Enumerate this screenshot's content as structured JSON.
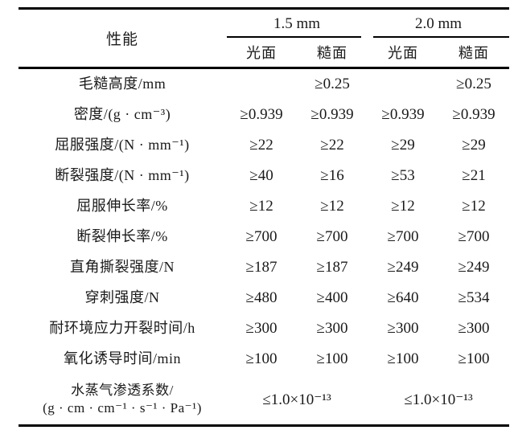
{
  "table": {
    "header": {
      "property_label": "性能",
      "groups": [
        {
          "label": "1.5 mm",
          "subcolumns": [
            "光面",
            "糙面"
          ]
        },
        {
          "label": "2.0 mm",
          "subcolumns": [
            "光面",
            "糙面"
          ]
        }
      ]
    },
    "rows": [
      {
        "label": "毛糙高度/mm",
        "cells": [
          {
            "text": ""
          },
          {
            "text": "≥0.25"
          },
          {
            "text": ""
          },
          {
            "text": "≥0.25"
          }
        ]
      },
      {
        "label": "密度/(g · cm⁻³)",
        "cells": [
          {
            "text": "≥0.939"
          },
          {
            "text": "≥0.939"
          },
          {
            "text": "≥0.939"
          },
          {
            "text": "≥0.939"
          }
        ]
      },
      {
        "label": "屈服强度/(N · mm⁻¹)",
        "cells": [
          {
            "text": "≥22"
          },
          {
            "text": "≥22"
          },
          {
            "text": "≥29"
          },
          {
            "text": "≥29"
          }
        ]
      },
      {
        "label": "断裂强度/(N · mm⁻¹)",
        "cells": [
          {
            "text": "≥40"
          },
          {
            "text": "≥16"
          },
          {
            "text": "≥53"
          },
          {
            "text": "≥21"
          }
        ]
      },
      {
        "label": "屈服伸长率/%",
        "cells": [
          {
            "text": "≥12"
          },
          {
            "text": "≥12"
          },
          {
            "text": "≥12"
          },
          {
            "text": "≥12"
          }
        ]
      },
      {
        "label": "断裂伸长率/%",
        "cells": [
          {
            "text": "≥700"
          },
          {
            "text": "≥700"
          },
          {
            "text": "≥700"
          },
          {
            "text": "≥700"
          }
        ]
      },
      {
        "label": "直角撕裂强度/N",
        "cells": [
          {
            "text": "≥187"
          },
          {
            "text": "≥187"
          },
          {
            "text": "≥249"
          },
          {
            "text": "≥249"
          }
        ]
      },
      {
        "label": "穿刺强度/N",
        "cells": [
          {
            "text": "≥480"
          },
          {
            "text": "≥400"
          },
          {
            "text": "≥640"
          },
          {
            "text": "≥534"
          }
        ]
      },
      {
        "label": "耐环境应力开裂时间/h",
        "cells": [
          {
            "text": "≥300"
          },
          {
            "text": "≥300"
          },
          {
            "text": "≥300"
          },
          {
            "text": "≥300"
          }
        ]
      },
      {
        "label": "氧化诱导时间/min",
        "cells": [
          {
            "text": "≥100"
          },
          {
            "text": "≥100"
          },
          {
            "text": "≥100"
          },
          {
            "text": "≥100"
          }
        ]
      },
      {
        "label": "水蒸气渗透系数/\n(g · cm · cm⁻¹ · s⁻¹ · Pa⁻¹)",
        "tall": true,
        "cells": [
          {
            "text": "≤1.0×10⁻¹³",
            "span": 2
          },
          {
            "text": "≤1.0×10⁻¹³",
            "span": 2
          }
        ]
      }
    ],
    "colors": {
      "text": "#1a1a1a",
      "rule": "#000000",
      "background": "#ffffff"
    }
  }
}
